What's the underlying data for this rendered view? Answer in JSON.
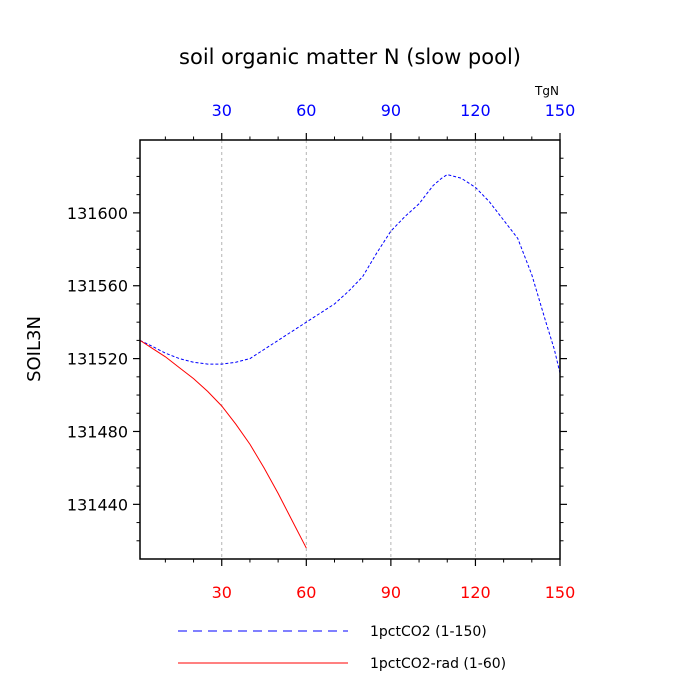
{
  "chart_data": {
    "type": "line",
    "title": "soil organic matter N (slow pool)",
    "ylabel": "SOIL3N",
    "top_axis_unit": "TgN",
    "xlim": [
      1,
      150
    ],
    "ylim": [
      131410,
      131640
    ],
    "xticks": [
      30,
      60,
      90,
      120,
      150
    ],
    "yticks": [
      131440,
      131480,
      131520,
      131560,
      131600
    ],
    "grid": "vertical dashed at x ticks",
    "legend_position": "bottom",
    "series": [
      {
        "name": "1pctCO2 (1-150)",
        "color": "#0000ff",
        "dash": "dashed",
        "x": [
          1,
          5,
          10,
          15,
          20,
          25,
          30,
          35,
          40,
          45,
          50,
          55,
          60,
          65,
          70,
          75,
          80,
          85,
          90,
          95,
          100,
          105,
          108,
          110,
          115,
          120,
          125,
          130,
          135,
          140,
          145,
          148,
          150
        ],
        "y": [
          131530,
          131527,
          131523,
          131520,
          131518,
          131517,
          131517,
          131518,
          131520,
          131525,
          131530,
          131535,
          131540,
          131545,
          131550,
          131557,
          131565,
          131578,
          131590,
          131598,
          131605,
          131615,
          131619,
          131621,
          131619,
          131614,
          131606,
          131596,
          131586,
          131566,
          131540,
          131525,
          131512
        ]
      },
      {
        "name": "1pctCO2-rad (1-60)",
        "color": "#ff0000",
        "dash": "solid",
        "x": [
          1,
          5,
          10,
          15,
          20,
          25,
          30,
          35,
          40,
          45,
          50,
          55,
          60
        ],
        "y": [
          131530,
          131526,
          131521,
          131515,
          131509,
          131502,
          131494,
          131484,
          131473,
          131460,
          131446,
          131431,
          131416
        ]
      }
    ]
  }
}
